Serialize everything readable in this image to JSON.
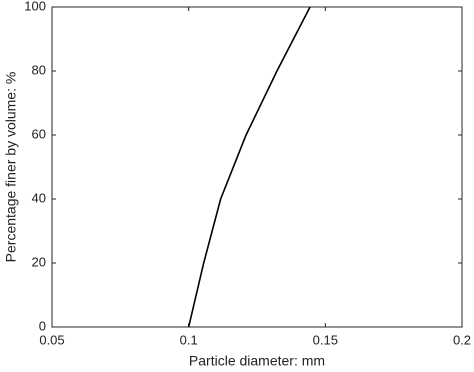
{
  "chart_data": {
    "type": "line",
    "x_label": "Particle diameter: mm",
    "y_label": "Percentage finer by volume: %",
    "x": [
      0.1,
      0.1055,
      0.1117,
      0.121,
      0.1323,
      0.1444
    ],
    "values": [
      0,
      20,
      40,
      60,
      80,
      100
    ],
    "color": "#000000",
    "xlim": [
      0.05,
      0.2
    ],
    "xticks": [
      0.05,
      0.1,
      0.15,
      0.2
    ],
    "ylim": [
      0,
      100
    ],
    "yticks": [
      0,
      20,
      40,
      60,
      80,
      100
    ],
    "grid": false
  }
}
